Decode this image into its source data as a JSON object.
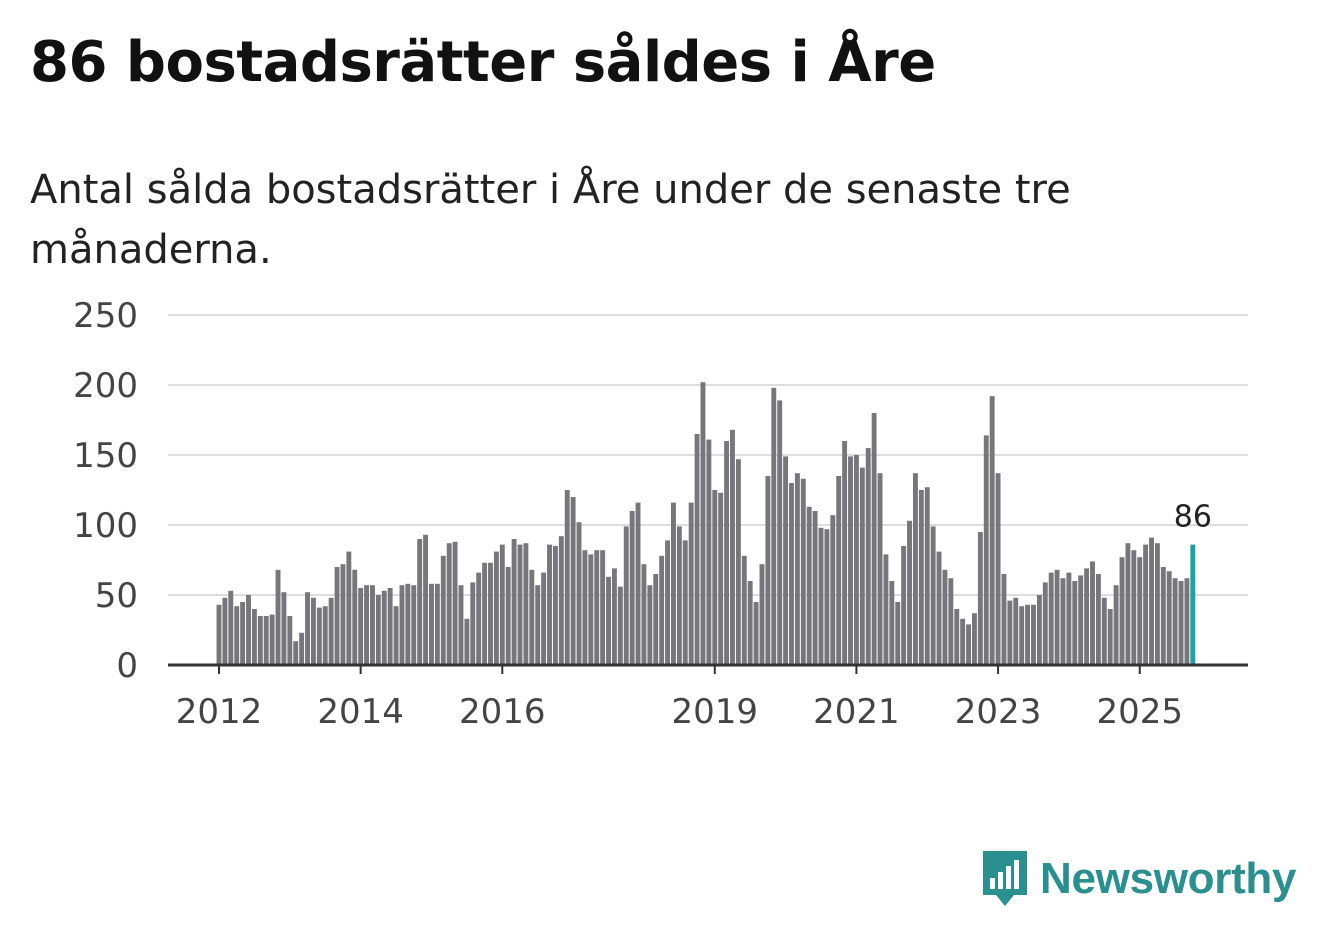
{
  "title": "86 bostadsrätter såldes i Åre",
  "subtitle": "Antal sålda bostadsrätter i Åre under de senaste tre månaderna.",
  "brand": {
    "name": "Newsworthy",
    "color": "#2a8f8f"
  },
  "colors": {
    "bar": "#77767b",
    "highlight": "#1aa3a3",
    "grid": "#dddddd",
    "axis": "#333333"
  },
  "chart_data": {
    "type": "bar",
    "title": "86 bostadsrätter såldes i Åre",
    "xlabel": "",
    "ylabel": "",
    "ylim": [
      0,
      250
    ],
    "yticks": [
      "0",
      "50",
      "100",
      "150",
      "200",
      "250"
    ],
    "xticks": [
      {
        "label": "2012",
        "index": 0
      },
      {
        "label": "2014",
        "index": 24
      },
      {
        "label": "2016",
        "index": 48
      },
      {
        "label": "2019",
        "index": 84
      },
      {
        "label": "2021",
        "index": 108
      },
      {
        "label": "2023",
        "index": 132
      },
      {
        "label": "2025",
        "index": 156
      }
    ],
    "start": "2012-01",
    "frequency": "monthly",
    "highlight_label": "86",
    "values": [
      43,
      48,
      53,
      42,
      45,
      50,
      40,
      35,
      35,
      36,
      68,
      52,
      35,
      17,
      23,
      52,
      48,
      41,
      42,
      48,
      70,
      72,
      81,
      68,
      55,
      57,
      57,
      50,
      53,
      55,
      42,
      57,
      58,
      57,
      90,
      93,
      58,
      58,
      78,
      87,
      88,
      57,
      33,
      59,
      66,
      73,
      73,
      81,
      86,
      70,
      90,
      86,
      87,
      68,
      57,
      66,
      86,
      85,
      92,
      125,
      120,
      102,
      82,
      79,
      82,
      82,
      63,
      69,
      56,
      99,
      110,
      116,
      72,
      57,
      65,
      78,
      89,
      116,
      99,
      89,
      116,
      165,
      202,
      161,
      125,
      123,
      160,
      168,
      147,
      78,
      60,
      45,
      72,
      135,
      198,
      189,
      149,
      130,
      137,
      133,
      113,
      110,
      98,
      97,
      107,
      135,
      160,
      149,
      150,
      141,
      155,
      180,
      137,
      79,
      60,
      45,
      85,
      103,
      137,
      125,
      127,
      99,
      81,
      68,
      62,
      40,
      33,
      29,
      37,
      95,
      164,
      192,
      137,
      65,
      46,
      48,
      42,
      43,
      43,
      50,
      59,
      66,
      68,
      62,
      66,
      60,
      64,
      69,
      74,
      65,
      48,
      40,
      57,
      77,
      87,
      82,
      77,
      86,
      91,
      87,
      70,
      67,
      62,
      60,
      62,
      86
    ]
  }
}
